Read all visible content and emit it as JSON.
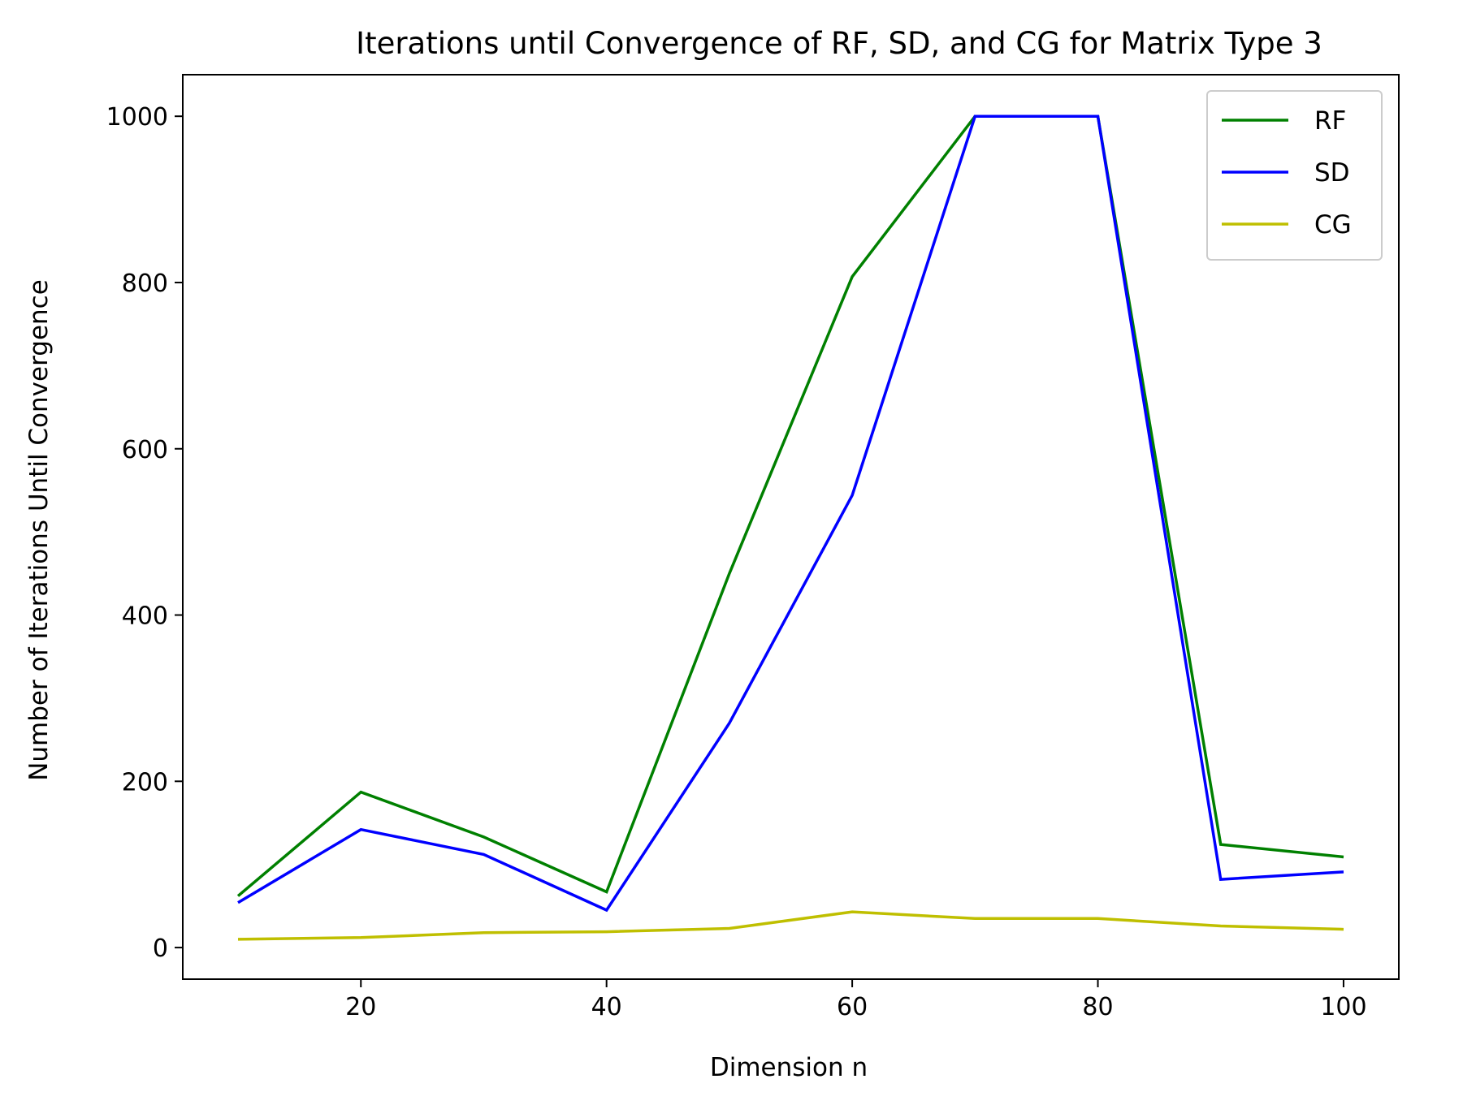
{
  "chart_data": {
    "type": "line",
    "title": "Iterations until Convergence of RF, SD, and CG for Matrix Type 3",
    "xlabel": "Dimension n",
    "ylabel": "Number of Iterations Until Convergence",
    "x": [
      10,
      20,
      30,
      40,
      50,
      60,
      70,
      80,
      90,
      100
    ],
    "xlim": [
      5.5,
      104.5
    ],
    "ylim": [
      -38,
      1050
    ],
    "xticks": [
      20,
      40,
      60,
      80,
      100
    ],
    "yticks": [
      0,
      200,
      400,
      600,
      800,
      1000
    ],
    "grid": false,
    "legend_position": "top-right",
    "series": [
      {
        "name": "RF",
        "color": "#008000",
        "values": [
          62,
          187,
          133,
          67,
          450,
          807,
          1000,
          1000,
          124,
          109
        ]
      },
      {
        "name": "SD",
        "color": "#0000ff",
        "values": [
          54,
          142,
          112,
          45,
          270,
          544,
          1000,
          1000,
          82,
          91
        ]
      },
      {
        "name": "CG",
        "color": "#bfbf00",
        "values": [
          10,
          12,
          18,
          19,
          23,
          43,
          35,
          35,
          26,
          22
        ]
      }
    ]
  }
}
